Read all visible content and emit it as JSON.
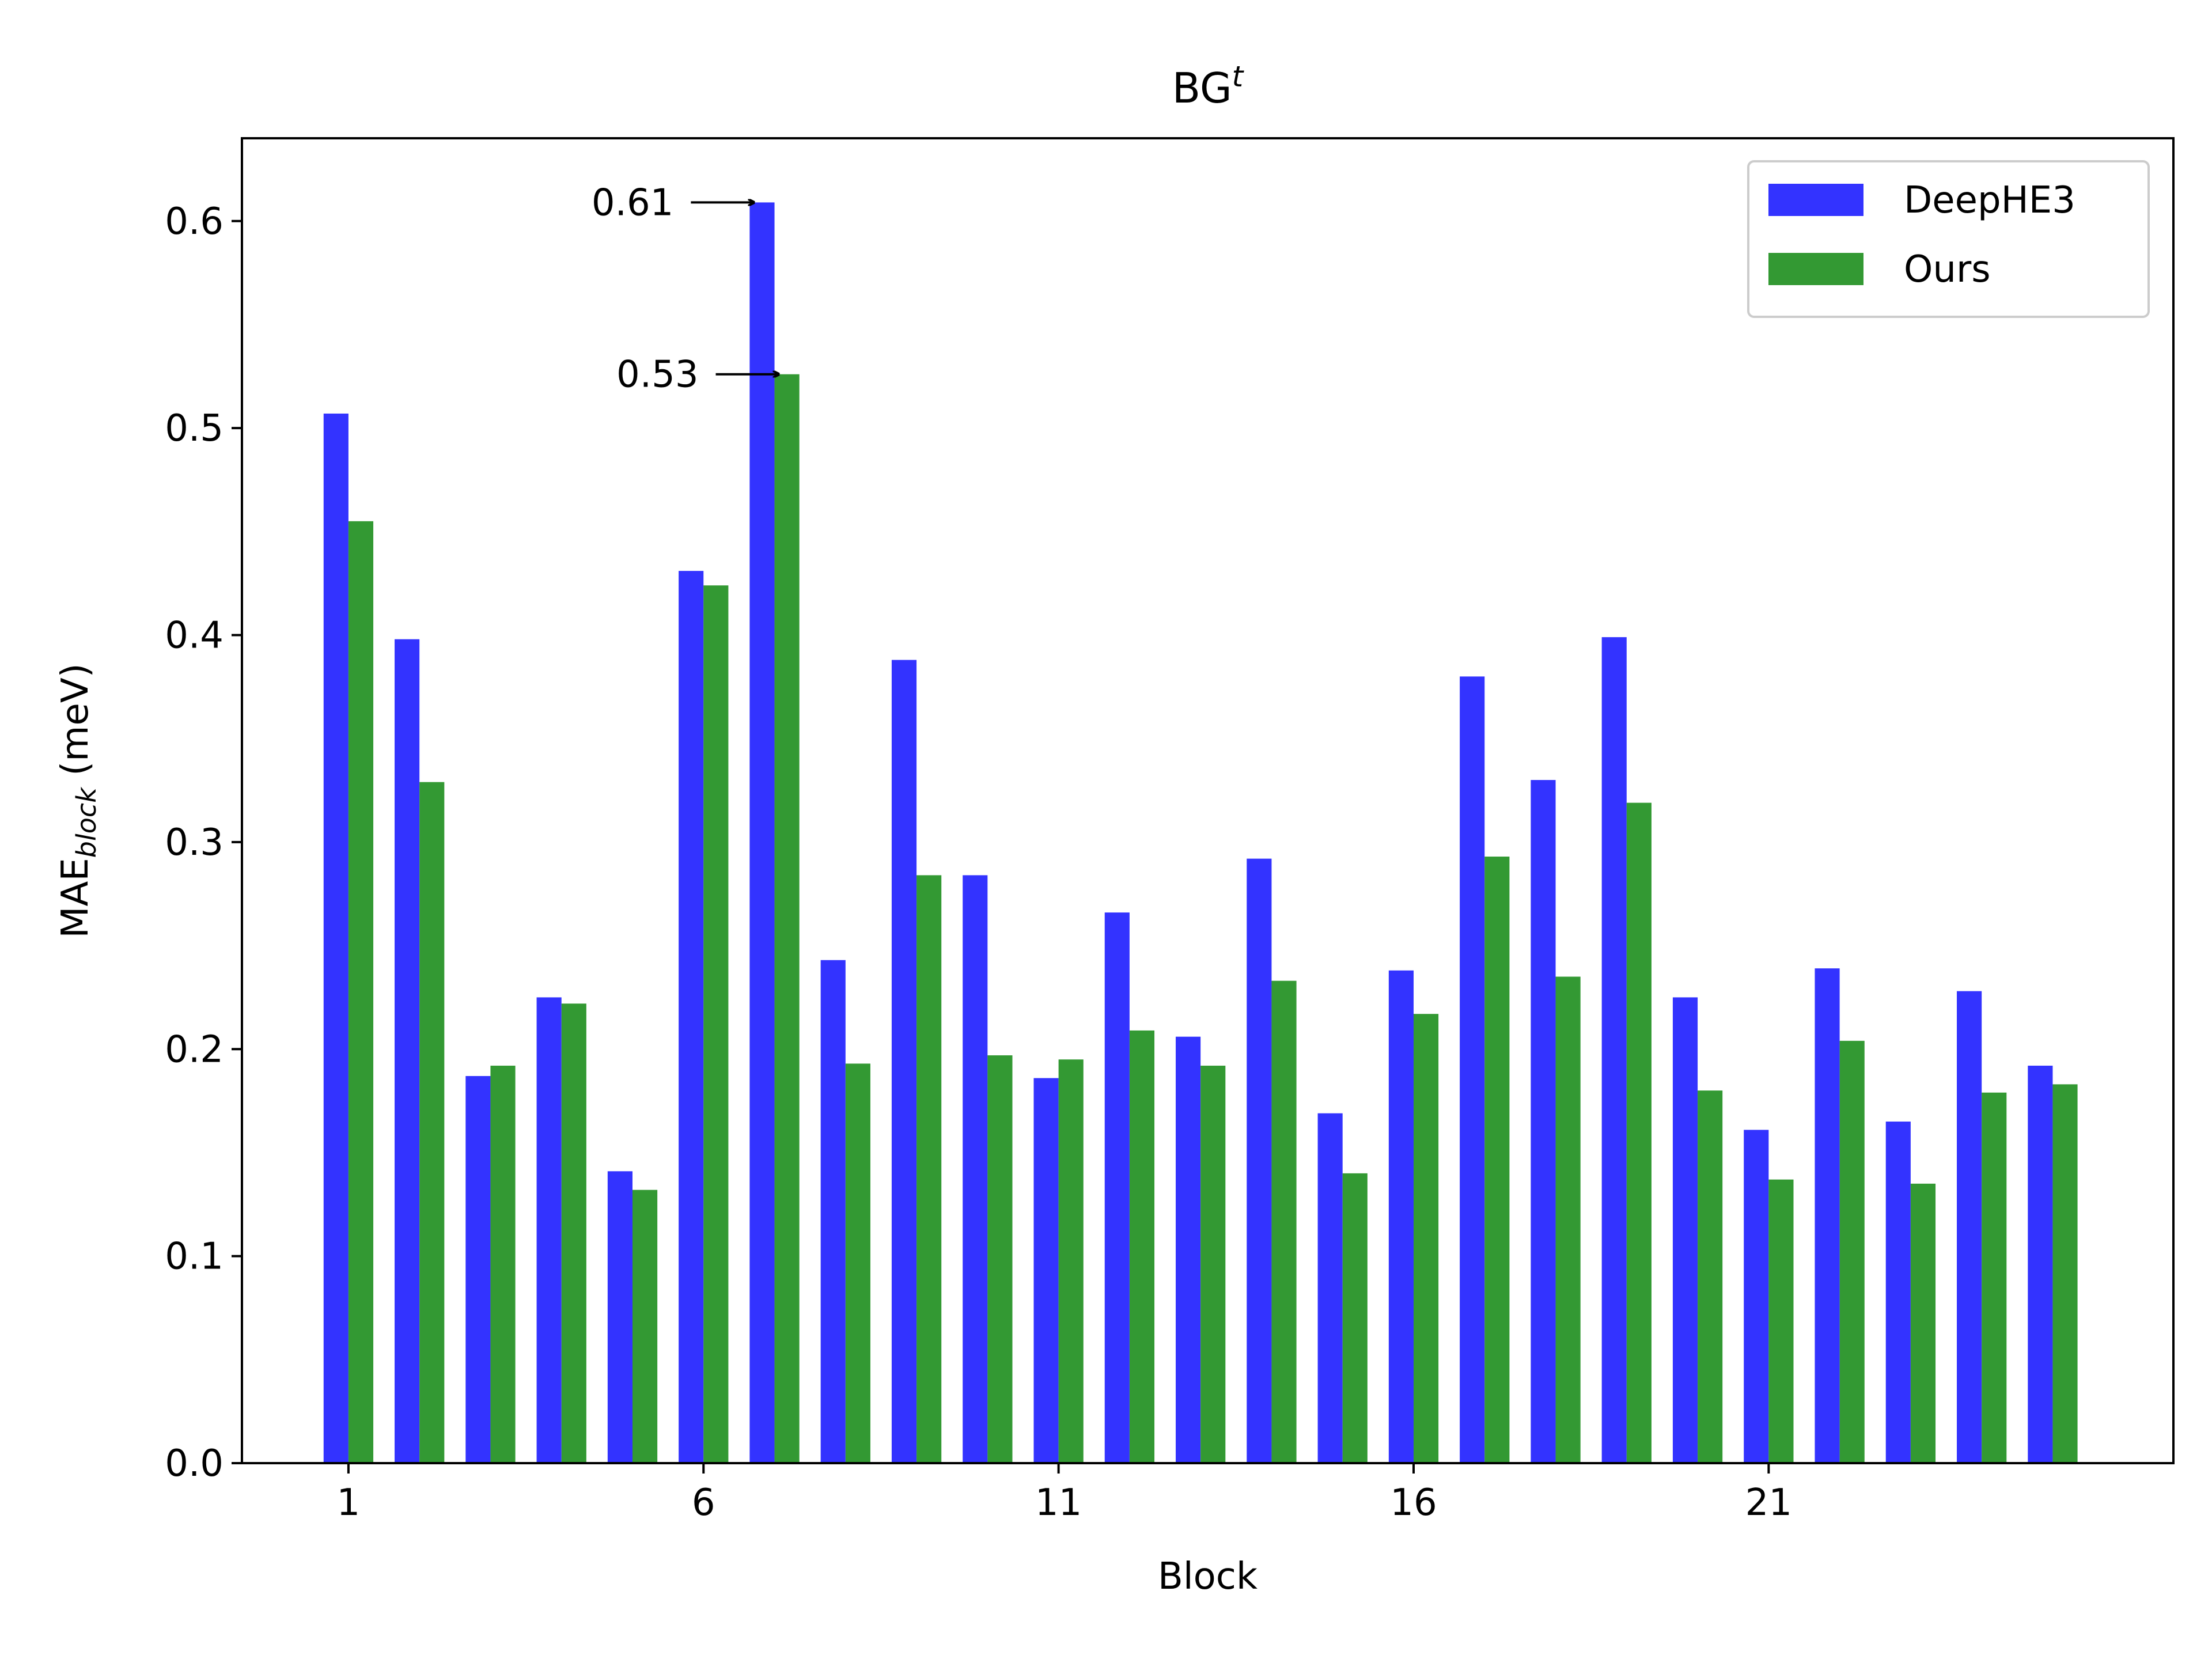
{
  "chart_data": {
    "type": "bar",
    "title": "BG",
    "title_superscript": "t",
    "xlabel": "Block",
    "ylabel_main": "MAE",
    "ylabel_subscript": "block",
    "ylabel_unit": " (meV)",
    "categories": [
      1,
      2,
      3,
      4,
      5,
      6,
      7,
      8,
      9,
      10,
      11,
      12,
      13,
      14,
      15,
      16,
      17,
      18,
      19,
      20,
      21,
      22,
      23,
      24,
      25
    ],
    "xticks": [
      1,
      6,
      11,
      16,
      21
    ],
    "yticks": [
      0.0,
      0.1,
      0.2,
      0.3,
      0.4,
      0.5,
      0.6
    ],
    "ytick_labels": [
      "0.0",
      "0.1",
      "0.2",
      "0.3",
      "0.4",
      "0.5",
      "0.6"
    ],
    "ylim": [
      0,
      0.64
    ],
    "xlim": [
      -0.5,
      26.7
    ],
    "grid": false,
    "legend_position": "top-right",
    "series": [
      {
        "name": "DeepHE3",
        "color": "#3333ff",
        "values": [
          0.507,
          0.398,
          0.187,
          0.225,
          0.141,
          0.431,
          0.609,
          0.243,
          0.388,
          0.284,
          0.186,
          0.266,
          0.206,
          0.292,
          0.169,
          0.238,
          0.38,
          0.33,
          0.399,
          0.225,
          0.161,
          0.239,
          0.165,
          0.228,
          0.192
        ]
      },
      {
        "name": "Ours",
        "color": "#339933",
        "values": [
          0.455,
          0.329,
          0.192,
          0.222,
          0.132,
          0.424,
          0.526,
          0.193,
          0.284,
          0.197,
          0.195,
          0.209,
          0.192,
          0.233,
          0.14,
          0.217,
          0.293,
          0.235,
          0.319,
          0.18,
          0.137,
          0.204,
          0.135,
          0.179,
          0.183
        ]
      }
    ],
    "annotations": [
      {
        "text": "0.61",
        "series": 0,
        "category": 7,
        "value": 0.609
      },
      {
        "text": "0.53",
        "series": 1,
        "category": 7,
        "value": 0.526
      }
    ]
  }
}
